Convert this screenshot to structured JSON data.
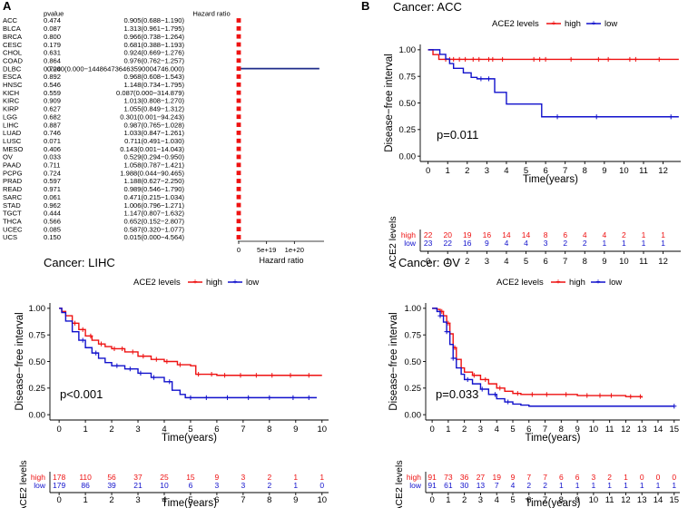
{
  "panel_labels": {
    "a": "A",
    "b": "B"
  },
  "colors": {
    "high": "#ee1111",
    "low": "#1111cc",
    "axis": "#000000",
    "forest_box": "#ee1111",
    "forest_line": "#1f2d8a"
  },
  "chart_data": [
    {
      "type": "forest",
      "id": "A",
      "column_headers": {
        "pvalue": "pvalue",
        "hr": "Hazard ratio"
      },
      "xlabel": "Hazard ratio",
      "xticks": [
        "0",
        "5e+19",
        "1e+20"
      ],
      "xlim": [
        0,
        1.5e+20
      ],
      "rows": [
        {
          "cancer": "ACC",
          "pvalue": "0.474",
          "hr": "0.905(0.688−1.190)",
          "hr_value": 0.905
        },
        {
          "cancer": "BLCA",
          "pvalue": "0.087",
          "hr": "1.313(0.961−1.795)",
          "hr_value": 1.313
        },
        {
          "cancer": "BRCA",
          "pvalue": "0.800",
          "hr": "0.966(0.738−1.264)",
          "hr_value": 0.966
        },
        {
          "cancer": "CESC",
          "pvalue": "0.179",
          "hr": "0.681(0.388−1.193)",
          "hr_value": 0.681
        },
        {
          "cancer": "CHOL",
          "pvalue": "0.631",
          "hr": "0.924(0.669−1.276)",
          "hr_value": 0.924
        },
        {
          "cancer": "COAD",
          "pvalue": "0.864",
          "hr": "0.976(0.762−1.257)",
          "hr_value": 0.976
        },
        {
          "cancer": "DLBC",
          "pvalue": "0.724",
          "hr": "0.000(0.000−144864736463590004746.000)",
          "hr_value": 0,
          "ci_upper": 1.4486e+20
        },
        {
          "cancer": "ESCA",
          "pvalue": "0.892",
          "hr": "0.968(0.608−1.543)",
          "hr_value": 0.968
        },
        {
          "cancer": "HNSC",
          "pvalue": "0.546",
          "hr": "1.148(0.734−1.795)",
          "hr_value": 1.148
        },
        {
          "cancer": "KICH",
          "pvalue": "0.559",
          "hr": "0.087(0.000−314.879)",
          "hr_value": 0.087
        },
        {
          "cancer": "KIRC",
          "pvalue": "0.909",
          "hr": "1.013(0.808−1.270)",
          "hr_value": 1.013
        },
        {
          "cancer": "KIRP",
          "pvalue": "0.627",
          "hr": "1.055(0.849−1.312)",
          "hr_value": 1.055
        },
        {
          "cancer": "LGG",
          "pvalue": "0.682",
          "hr": "0.301(0.001−94.243)",
          "hr_value": 0.301
        },
        {
          "cancer": "LIHC",
          "pvalue": "0.887",
          "hr": "0.987(0.765−1.028)",
          "hr_value": 0.987
        },
        {
          "cancer": "LUAD",
          "pvalue": "0.746",
          "hr": "1.033(0.847−1.261)",
          "hr_value": 1.033
        },
        {
          "cancer": "LUSC",
          "pvalue": "0.071",
          "hr": "0.711(0.491−1.030)",
          "hr_value": 0.711
        },
        {
          "cancer": "MESO",
          "pvalue": "0.406",
          "hr": "0.143(0.001−14.043)",
          "hr_value": 0.143
        },
        {
          "cancer": "OV",
          "pvalue": "0.033",
          "hr": "0.529(0.294−0.950)",
          "hr_value": 0.529
        },
        {
          "cancer": "PAAD",
          "pvalue": "0.711",
          "hr": "1.058(0.787−1.421)",
          "hr_value": 1.058
        },
        {
          "cancer": "PCPG",
          "pvalue": "0.724",
          "hr": "1.988(0.044−90.465)",
          "hr_value": 1.988
        },
        {
          "cancer": "PRAD",
          "pvalue": "0.597",
          "hr": "1.188(0.627−2.250)",
          "hr_value": 1.188
        },
        {
          "cancer": "READ",
          "pvalue": "0.971",
          "hr": "0.989(0.546−1.790)",
          "hr_value": 0.989
        },
        {
          "cancer": "SARC",
          "pvalue": "0.061",
          "hr": "0.471(0.215−1.034)",
          "hr_value": 0.471
        },
        {
          "cancer": "STAD",
          "pvalue": "0.962",
          "hr": "1.006(0.796−1.271)",
          "hr_value": 1.006
        },
        {
          "cancer": "TGCT",
          "pvalue": "0.444",
          "hr": "1.147(0.807−1.632)",
          "hr_value": 1.147
        },
        {
          "cancer": "THCA",
          "pvalue": "0.566",
          "hr": "0.652(0.152−2.807)",
          "hr_value": 0.652
        },
        {
          "cancer": "UCEC",
          "pvalue": "0.085",
          "hr": "0.587(0.320−1.077)",
          "hr_value": 0.587
        },
        {
          "cancer": "UCS",
          "pvalue": "0.150",
          "hr": "0.015(0.000−4.564)",
          "hr_value": 0.015
        }
      ]
    },
    {
      "type": "km",
      "id": "ACC",
      "title": "Cancer: ACC",
      "legend_title": "ACE2 levels",
      "legend_labels": [
        "high",
        "low"
      ],
      "ylabel": "Disease−free interval",
      "xlabel": "Time(years)",
      "yticks": [
        "0.00",
        "0.25",
        "0.50",
        "0.75",
        "1.00"
      ],
      "xticks": [
        "0",
        "1",
        "2",
        "3",
        "4",
        "5",
        "6",
        "7",
        "8",
        "9",
        "10",
        "11",
        "12"
      ],
      "xlim": [
        -0.4,
        12.9
      ],
      "pvalue": "p=0.011",
      "risk_ylabel": "ACE2 levels",
      "series": [
        {
          "name": "high",
          "steps": [
            [
              0,
              1.0
            ],
            [
              0.25,
              0.955
            ],
            [
              0.55,
              0.91
            ],
            [
              12.8,
              0.91
            ]
          ],
          "censors": [
            0.9,
            1.1,
            1.3,
            1.6,
            1.9,
            2.3,
            2.6,
            3.1,
            3.3,
            3.8,
            5.4,
            5.7,
            6.0,
            7.3,
            8.7,
            9.2,
            10.3,
            10.6,
            11.8
          ]
        },
        {
          "name": "low",
          "steps": [
            [
              0,
              1.0
            ],
            [
              0.6,
              0.957
            ],
            [
              0.9,
              0.913
            ],
            [
              1.1,
              0.87
            ],
            [
              1.3,
              0.826
            ],
            [
              1.8,
              0.783
            ],
            [
              2.2,
              0.74
            ],
            [
              2.5,
              0.727
            ],
            [
              3.4,
              0.6
            ],
            [
              4.0,
              0.49
            ],
            [
              5.8,
              0.37
            ],
            [
              12.8,
              0.37
            ]
          ],
          "censors": [
            2.7,
            3.1,
            6.6,
            8.6,
            12.4
          ]
        }
      ],
      "risk_table": {
        "high": [
          "22",
          "20",
          "19",
          "16",
          "14",
          "14",
          "8",
          "6",
          "4",
          "4",
          "2",
          "1",
          "1"
        ],
        "low": [
          "23",
          "22",
          "16",
          "9",
          "4",
          "4",
          "3",
          "2",
          "2",
          "1",
          "1",
          "1",
          "1"
        ]
      }
    },
    {
      "type": "km",
      "id": "LIHC",
      "title": "Cancer: LIHC",
      "legend_title": "ACE2 levels",
      "legend_labels": [
        "high",
        "low"
      ],
      "ylabel": "Disease−free interval",
      "xlabel": "Time(years)",
      "yticks": [
        "0.00",
        "0.25",
        "0.50",
        "0.75",
        "1.00"
      ],
      "xticks": [
        "0",
        "1",
        "2",
        "3",
        "4",
        "5",
        "6",
        "7",
        "8",
        "9",
        "10"
      ],
      "xlim": [
        -0.35,
        10.25
      ],
      "pvalue": "p<0.001",
      "risk_ylabel": "ACE2 levels",
      "series": [
        {
          "name": "high",
          "steps": [
            [
              0,
              1.0
            ],
            [
              0.1,
              0.97
            ],
            [
              0.25,
              0.93
            ],
            [
              0.5,
              0.86
            ],
            [
              0.75,
              0.8
            ],
            [
              1.0,
              0.74
            ],
            [
              1.25,
              0.7
            ],
            [
              1.5,
              0.665
            ],
            [
              1.75,
              0.64
            ],
            [
              2.0,
              0.62
            ],
            [
              2.5,
              0.59
            ],
            [
              3.0,
              0.55
            ],
            [
              3.5,
              0.52
            ],
            [
              4.0,
              0.5
            ],
            [
              4.5,
              0.47
            ],
            [
              5.0,
              0.46
            ],
            [
              5.2,
              0.38
            ],
            [
              6.0,
              0.37
            ],
            [
              10.0,
              0.37
            ]
          ],
          "censors": [
            0.6,
            0.9,
            1.2,
            1.6,
            2.1,
            2.4,
            2.8,
            3.2,
            3.7,
            4.1,
            4.6,
            5.3,
            5.8,
            6.3,
            6.9,
            7.5,
            8.1,
            8.8,
            9.5
          ]
        },
        {
          "name": "low",
          "steps": [
            [
              0,
              1.0
            ],
            [
              0.1,
              0.96
            ],
            [
              0.25,
              0.88
            ],
            [
              0.5,
              0.78
            ],
            [
              0.75,
              0.7
            ],
            [
              1.0,
              0.63
            ],
            [
              1.25,
              0.58
            ],
            [
              1.5,
              0.53
            ],
            [
              1.75,
              0.49
            ],
            [
              2.0,
              0.46
            ],
            [
              2.5,
              0.43
            ],
            [
              3.0,
              0.39
            ],
            [
              3.5,
              0.35
            ],
            [
              4.0,
              0.31
            ],
            [
              4.3,
              0.23
            ],
            [
              4.6,
              0.19
            ],
            [
              4.8,
              0.16
            ],
            [
              6.0,
              0.16
            ],
            [
              9.8,
              0.16
            ]
          ],
          "censors": [
            0.9,
            1.4,
            2.2,
            2.7,
            3.1,
            3.6,
            4.2,
            5.0,
            5.6,
            6.4,
            7.2,
            8.0,
            8.9,
            9.5
          ]
        }
      ],
      "risk_table": {
        "high": [
          "178",
          "110",
          "56",
          "37",
          "25",
          "15",
          "9",
          "3",
          "2",
          "1",
          "1"
        ],
        "low": [
          "179",
          "86",
          "39",
          "21",
          "10",
          "6",
          "3",
          "3",
          "2",
          "1",
          "0"
        ]
      }
    },
    {
      "type": "km",
      "id": "OV",
      "title": "Cancer: OV",
      "legend_title": "ACE2 levels",
      "legend_labels": [
        "high",
        "low"
      ],
      "ylabel": "Disease−free interval",
      "xlabel": "Time(years)",
      "yticks": [
        "0.00",
        "0.25",
        "0.50",
        "0.75",
        "1.00"
      ],
      "xticks": [
        "0",
        "1",
        "2",
        "3",
        "4",
        "5",
        "6",
        "7",
        "8",
        "9",
        "10",
        "11",
        "12",
        "13",
        "14",
        "15"
      ],
      "xlim": [
        -0.4,
        15.35
      ],
      "pvalue": "p=0.033",
      "risk_ylabel": "ACE2 levels",
      "series": [
        {
          "name": "high",
          "steps": [
            [
              0,
              1.0
            ],
            [
              0.3,
              0.99
            ],
            [
              0.5,
              0.97
            ],
            [
              0.7,
              0.93
            ],
            [
              0.9,
              0.86
            ],
            [
              1.1,
              0.76
            ],
            [
              1.3,
              0.63
            ],
            [
              1.5,
              0.52
            ],
            [
              1.8,
              0.44
            ],
            [
              2.0,
              0.4
            ],
            [
              2.5,
              0.37
            ],
            [
              3.0,
              0.33
            ],
            [
              3.5,
              0.29
            ],
            [
              4.0,
              0.25
            ],
            [
              4.5,
              0.22
            ],
            [
              5.0,
              0.2
            ],
            [
              5.5,
              0.19
            ],
            [
              9.0,
              0.18
            ],
            [
              12.0,
              0.17
            ],
            [
              13.0,
              0.16
            ]
          ],
          "censors": [
            0.6,
            1.0,
            1.4,
            2.6,
            3.3,
            4.2,
            5.3,
            6.2,
            7.1,
            8.3,
            9.6,
            10.4,
            11.1,
            12.3,
            12.9
          ]
        },
        {
          "name": "low",
          "steps": [
            [
              0,
              1.0
            ],
            [
              0.3,
              0.97
            ],
            [
              0.5,
              0.93
            ],
            [
              0.7,
              0.87
            ],
            [
              0.9,
              0.78
            ],
            [
              1.1,
              0.66
            ],
            [
              1.3,
              0.53
            ],
            [
              1.5,
              0.44
            ],
            [
              1.8,
              0.38
            ],
            [
              2.0,
              0.33
            ],
            [
              2.5,
              0.29
            ],
            [
              3.0,
              0.24
            ],
            [
              3.5,
              0.19
            ],
            [
              4.0,
              0.15
            ],
            [
              4.5,
              0.12
            ],
            [
              5.0,
              0.1
            ],
            [
              5.5,
              0.09
            ],
            [
              6.0,
              0.08
            ],
            [
              15.0,
              0.08
            ]
          ],
          "censors": [
            0.5,
            0.9,
            1.3,
            2.2,
            3.1,
            3.9,
            4.7,
            15.0
          ]
        }
      ],
      "risk_table": {
        "high": [
          "91",
          "73",
          "36",
          "27",
          "19",
          "9",
          "7",
          "7",
          "6",
          "6",
          "3",
          "2",
          "1",
          "0",
          "0",
          "0"
        ],
        "low": [
          "91",
          "61",
          "30",
          "13",
          "7",
          "4",
          "2",
          "2",
          "1",
          "1",
          "1",
          "1",
          "1",
          "1",
          "1",
          "1"
        ]
      }
    }
  ]
}
